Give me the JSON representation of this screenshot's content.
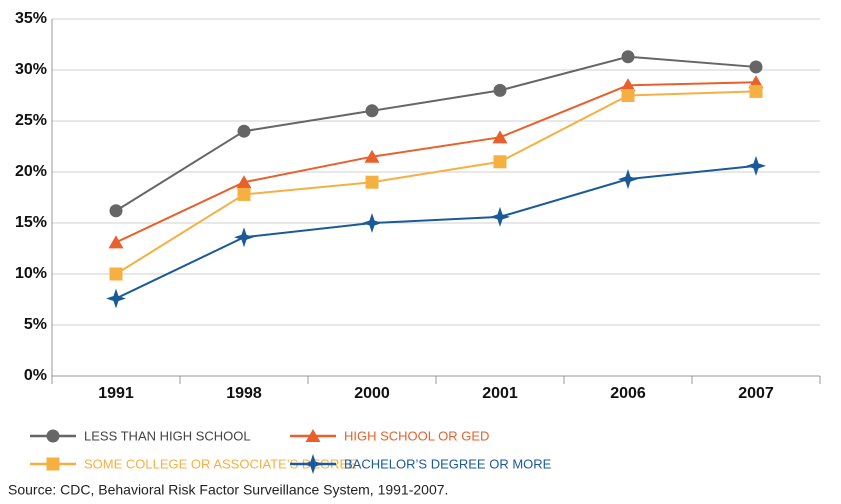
{
  "chart_data": {
    "type": "line",
    "categories": [
      "1991",
      "1998",
      "2000",
      "2001",
      "2006",
      "2007"
    ],
    "series": [
      {
        "name": "LESS THAN HIGH SCHOOL",
        "color": "#666666",
        "marker": "circle",
        "values": [
          16.2,
          24,
          26,
          28,
          31.3,
          30.3
        ]
      },
      {
        "name": "HIGH SCHOOL OR GED",
        "color": "#e8602c",
        "marker": "triangle",
        "values": [
          13.1,
          19,
          21.5,
          23.4,
          28.5,
          28.8
        ]
      },
      {
        "name": "SOME COLLEGE OR ASSOCIATE’S DEGREE",
        "color": "#f5b041",
        "marker": "square",
        "values": [
          10,
          17.8,
          19,
          21,
          27.5,
          27.9
        ]
      },
      {
        "name": "BACHELOR’S DEGREE OR MORE",
        "color": "#1a5a99",
        "marker": "star",
        "values": [
          7.6,
          13.6,
          15,
          15.6,
          19.3,
          20.6
        ]
      }
    ],
    "ylim": [
      0,
      35
    ],
    "yticks": [
      {
        "value": 0,
        "label": "0%"
      },
      {
        "value": 5,
        "label": "5%"
      },
      {
        "value": 10,
        "label": "10%"
      },
      {
        "value": 15,
        "label": "15%"
      },
      {
        "value": 20,
        "label": "20%"
      },
      {
        "value": 25,
        "label": "25%"
      },
      {
        "value": 30,
        "label": "30%"
      },
      {
        "value": 35,
        "label": "35%"
      }
    ],
    "grid": true,
    "source": "Source: CDC, Behavioral Risk Factor Surveillance System, 1991-2007."
  }
}
